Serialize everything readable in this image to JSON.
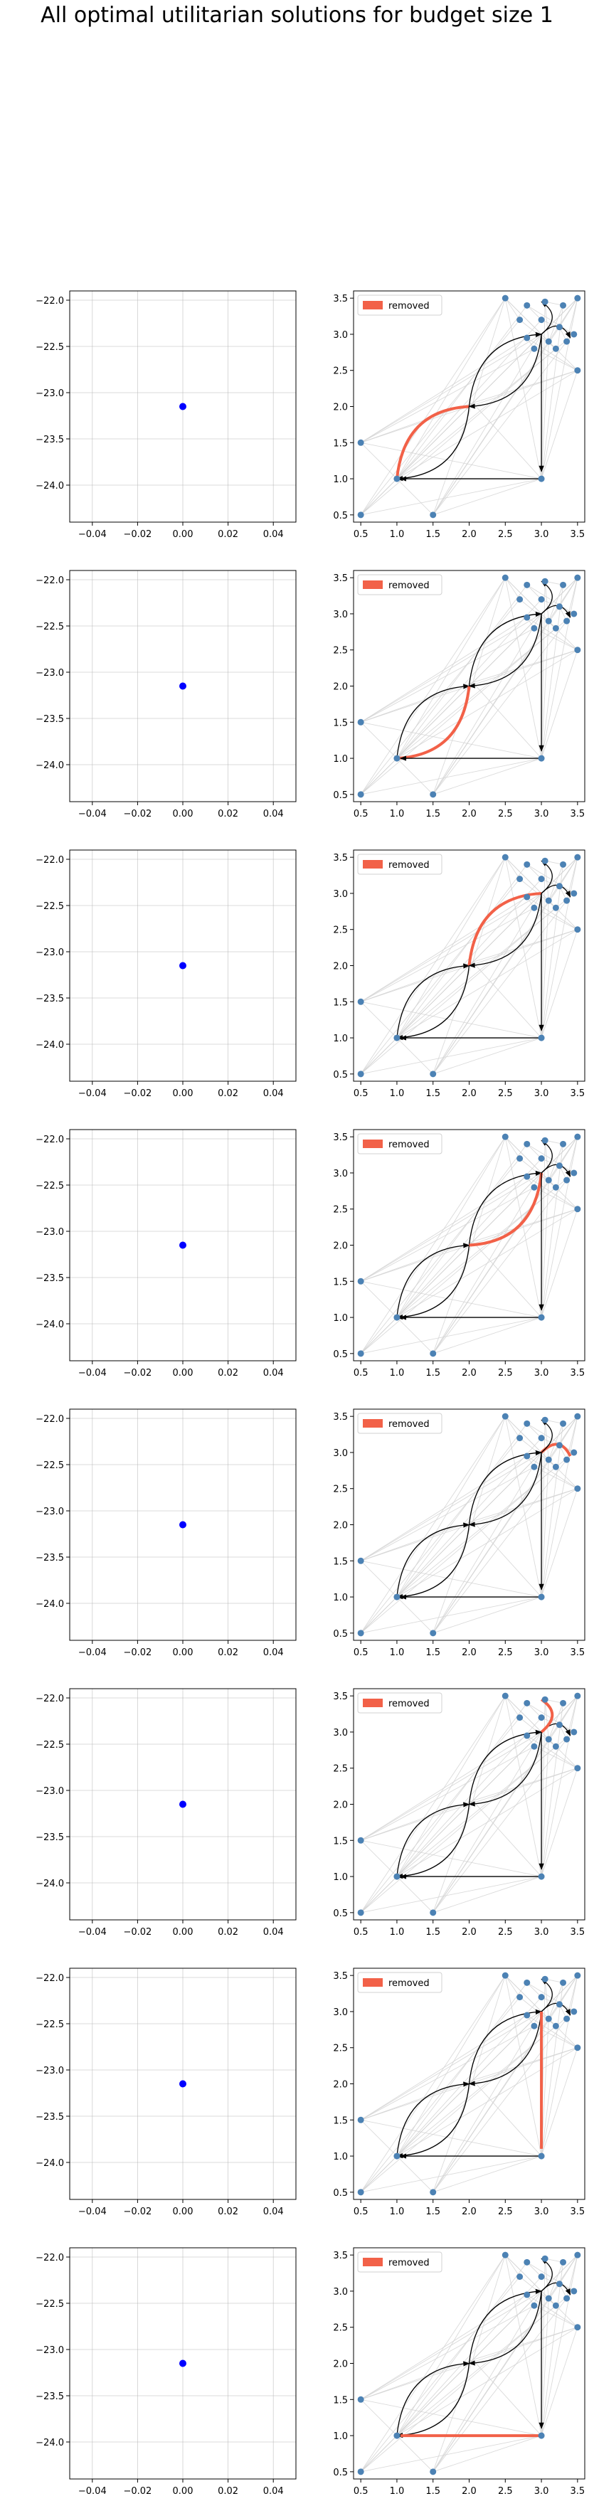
{
  "figure": {
    "title": "All optimal utilitarian solutions for budget size 1"
  },
  "style": {
    "point_color": "#0000ff",
    "node_color": "#4c82b4",
    "removed_color": "#f26148",
    "bg_edge_color": "#d4d4d4",
    "main_edge_color": "#000000",
    "grid_color": "#b0b0b0"
  },
  "chart_data": [
    {
      "type": "scatter",
      "title": "",
      "xlabel": "",
      "ylabel": "",
      "xlim": [
        -0.05,
        0.05
      ],
      "ylim": [
        -24.4,
        -21.9
      ],
      "xticks": [
        -0.04,
        -0.02,
        0.0,
        0.02,
        0.04
      ],
      "yticks": [
        -22.0,
        -22.5,
        -23.0,
        -23.5,
        -24.0
      ],
      "xtick_labels": [
        "−0.04",
        "−0.02",
        "0.00",
        "0.02",
        "0.04"
      ],
      "ytick_labels": [
        "−22.0",
        "−22.5",
        "−23.0",
        "−23.5",
        "−24.0"
      ],
      "grid": true,
      "points": [
        {
          "x": 0.0,
          "y": -23.15
        }
      ]
    },
    {
      "type": "network",
      "legend": [
        "removed"
      ],
      "legend_position": "top-left",
      "xlim": [
        0.4,
        3.6
      ],
      "ylim": [
        0.4,
        3.6
      ],
      "xticks": [
        0.5,
        1.0,
        1.5,
        2.0,
        2.5,
        3.0,
        3.5
      ],
      "yticks": [
        0.5,
        1.0,
        1.5,
        2.0,
        2.5,
        3.0,
        3.5
      ],
      "xtick_labels": [
        "0.5",
        "1.0",
        "1.5",
        "2.0",
        "2.5",
        "3.0",
        "3.5"
      ],
      "ytick_labels": [
        "0.5",
        "1.0",
        "1.5",
        "2.0",
        "2.5",
        "3.0",
        "3.5"
      ],
      "removed_edge": "1-2"
    },
    {
      "type": "scatter",
      "title": "",
      "xlabel": "",
      "ylabel": "",
      "xlim": [
        -0.05,
        0.05
      ],
      "ylim": [
        -24.4,
        -21.9
      ],
      "xticks": [
        -0.04,
        -0.02,
        0.0,
        0.02,
        0.04
      ],
      "yticks": [
        -22.0,
        -22.5,
        -23.0,
        -23.5,
        -24.0
      ],
      "xtick_labels": [
        "−0.04",
        "−0.02",
        "0.00",
        "0.02",
        "0.04"
      ],
      "ytick_labels": [
        "−22.0",
        "−22.5",
        "−23.0",
        "−23.5",
        "−24.0"
      ],
      "grid": true,
      "points": [
        {
          "x": 0.0,
          "y": -23.15
        }
      ]
    },
    {
      "type": "network",
      "legend": [
        "removed"
      ],
      "legend_position": "top-left",
      "xlim": [
        0.4,
        3.6
      ],
      "ylim": [
        0.4,
        3.6
      ],
      "xticks": [
        0.5,
        1.0,
        1.5,
        2.0,
        2.5,
        3.0,
        3.5
      ],
      "yticks": [
        0.5,
        1.0,
        1.5,
        2.0,
        2.5,
        3.0,
        3.5
      ],
      "xtick_labels": [
        "0.5",
        "1.0",
        "1.5",
        "2.0",
        "2.5",
        "3.0",
        "3.5"
      ],
      "ytick_labels": [
        "0.5",
        "1.0",
        "1.5",
        "2.0",
        "2.5",
        "3.0",
        "3.5"
      ],
      "removed_edge": "2-1"
    },
    {
      "type": "scatter",
      "title": "",
      "xlabel": "",
      "ylabel": "",
      "xlim": [
        -0.05,
        0.05
      ],
      "ylim": [
        -24.4,
        -21.9
      ],
      "xticks": [
        -0.04,
        -0.02,
        0.0,
        0.02,
        0.04
      ],
      "yticks": [
        -22.0,
        -22.5,
        -23.0,
        -23.5,
        -24.0
      ],
      "xtick_labels": [
        "−0.04",
        "−0.02",
        "0.00",
        "0.02",
        "0.04"
      ],
      "ytick_labels": [
        "−22.0",
        "−22.5",
        "−23.0",
        "−23.5",
        "−24.0"
      ],
      "grid": true,
      "points": [
        {
          "x": 0.0,
          "y": -23.15
        }
      ]
    },
    {
      "type": "network",
      "legend": [
        "removed"
      ],
      "legend_position": "top-left",
      "xlim": [
        0.4,
        3.6
      ],
      "ylim": [
        0.4,
        3.6
      ],
      "xticks": [
        0.5,
        1.0,
        1.5,
        2.0,
        2.5,
        3.0,
        3.5
      ],
      "yticks": [
        0.5,
        1.0,
        1.5,
        2.0,
        2.5,
        3.0,
        3.5
      ],
      "xtick_labels": [
        "0.5",
        "1.0",
        "1.5",
        "2.0",
        "2.5",
        "3.0",
        "3.5"
      ],
      "ytick_labels": [
        "0.5",
        "1.0",
        "1.5",
        "2.0",
        "2.5",
        "3.0",
        "3.5"
      ],
      "removed_edge": "2-3"
    },
    {
      "type": "scatter",
      "title": "",
      "xlabel": "",
      "ylabel": "",
      "xlim": [
        -0.05,
        0.05
      ],
      "ylim": [
        -24.4,
        -21.9
      ],
      "xticks": [
        -0.04,
        -0.02,
        0.0,
        0.02,
        0.04
      ],
      "yticks": [
        -22.0,
        -22.5,
        -23.0,
        -23.5,
        -24.0
      ],
      "xtick_labels": [
        "−0.04",
        "−0.02",
        "0.00",
        "0.02",
        "0.04"
      ],
      "ytick_labels": [
        "−22.0",
        "−22.5",
        "−23.0",
        "−23.5",
        "−24.0"
      ],
      "grid": true,
      "points": [
        {
          "x": 0.0,
          "y": -23.15
        }
      ]
    },
    {
      "type": "network",
      "legend": [
        "removed"
      ],
      "legend_position": "top-left",
      "xlim": [
        0.4,
        3.6
      ],
      "ylim": [
        0.4,
        3.6
      ],
      "xticks": [
        0.5,
        1.0,
        1.5,
        2.0,
        2.5,
        3.0,
        3.5
      ],
      "yticks": [
        0.5,
        1.0,
        1.5,
        2.0,
        2.5,
        3.0,
        3.5
      ],
      "xtick_labels": [
        "0.5",
        "1.0",
        "1.5",
        "2.0",
        "2.5",
        "3.0",
        "3.5"
      ],
      "ytick_labels": [
        "0.5",
        "1.0",
        "1.5",
        "2.0",
        "2.5",
        "3.0",
        "3.5"
      ],
      "removed_edge": "3-2"
    },
    {
      "type": "scatter",
      "title": "",
      "xlabel": "",
      "ylabel": "",
      "xlim": [
        -0.05,
        0.05
      ],
      "ylim": [
        -24.4,
        -21.9
      ],
      "xticks": [
        -0.04,
        -0.02,
        0.0,
        0.02,
        0.04
      ],
      "yticks": [
        -22.0,
        -22.5,
        -23.0,
        -23.5,
        -24.0
      ],
      "xtick_labels": [
        "−0.04",
        "−0.02",
        "0.00",
        "0.02",
        "0.04"
      ],
      "ytick_labels": [
        "−22.0",
        "−22.5",
        "−23.0",
        "−23.5",
        "−24.0"
      ],
      "grid": true,
      "points": [
        {
          "x": 0.0,
          "y": -23.15
        }
      ]
    },
    {
      "type": "network",
      "legend": [
        "removed"
      ],
      "legend_position": "top-left",
      "xlim": [
        0.4,
        3.6
      ],
      "ylim": [
        0.4,
        3.6
      ],
      "xticks": [
        0.5,
        1.0,
        1.5,
        2.0,
        2.5,
        3.0,
        3.5
      ],
      "yticks": [
        0.5,
        1.0,
        1.5,
        2.0,
        2.5,
        3.0,
        3.5
      ],
      "xtick_labels": [
        "0.5",
        "1.0",
        "1.5",
        "2.0",
        "2.5",
        "3.0",
        "3.5"
      ],
      "ytick_labels": [
        "0.5",
        "1.0",
        "1.5",
        "2.0",
        "2.5",
        "3.0",
        "3.5"
      ],
      "removed_edge": "3-R"
    },
    {
      "type": "scatter",
      "title": "",
      "xlabel": "",
      "ylabel": "",
      "xlim": [
        -0.05,
        0.05
      ],
      "ylim": [
        -24.4,
        -21.9
      ],
      "xticks": [
        -0.04,
        -0.02,
        0.0,
        0.02,
        0.04
      ],
      "yticks": [
        -22.0,
        -22.5,
        -23.0,
        -23.5,
        -24.0
      ],
      "xtick_labels": [
        "−0.04",
        "−0.02",
        "0.00",
        "0.02",
        "0.04"
      ],
      "ytick_labels": [
        "−22.0",
        "−22.5",
        "−23.0",
        "−23.5",
        "−24.0"
      ],
      "grid": true,
      "points": [
        {
          "x": 0.0,
          "y": -23.15
        }
      ]
    },
    {
      "type": "network",
      "legend": [
        "removed"
      ],
      "legend_position": "top-left",
      "xlim": [
        0.4,
        3.6
      ],
      "ylim": [
        0.4,
        3.6
      ],
      "xticks": [
        0.5,
        1.0,
        1.5,
        2.0,
        2.5,
        3.0,
        3.5
      ],
      "yticks": [
        0.5,
        1.0,
        1.5,
        2.0,
        2.5,
        3.0,
        3.5
      ],
      "xtick_labels": [
        "0.5",
        "1.0",
        "1.5",
        "2.0",
        "2.5",
        "3.0",
        "3.5"
      ],
      "ytick_labels": [
        "0.5",
        "1.0",
        "1.5",
        "2.0",
        "2.5",
        "3.0",
        "3.5"
      ],
      "removed_edge": "3-T"
    },
    {
      "type": "scatter",
      "title": "",
      "xlabel": "",
      "ylabel": "",
      "xlim": [
        -0.05,
        0.05
      ],
      "ylim": [
        -24.4,
        -21.9
      ],
      "xticks": [
        -0.04,
        -0.02,
        0.0,
        0.02,
        0.04
      ],
      "yticks": [
        -22.0,
        -22.5,
        -23.0,
        -23.5,
        -24.0
      ],
      "xtick_labels": [
        "−0.04",
        "−0.02",
        "0.00",
        "0.02",
        "0.04"
      ],
      "ytick_labels": [
        "−22.0",
        "−22.5",
        "−23.0",
        "−23.5",
        "−24.0"
      ],
      "grid": true,
      "points": [
        {
          "x": 0.0,
          "y": -23.15
        }
      ]
    },
    {
      "type": "network",
      "legend": [
        "removed"
      ],
      "legend_position": "top-left",
      "xlim": [
        0.4,
        3.6
      ],
      "ylim": [
        0.4,
        3.6
      ],
      "xticks": [
        0.5,
        1.0,
        1.5,
        2.0,
        2.5,
        3.0,
        3.5
      ],
      "yticks": [
        0.5,
        1.0,
        1.5,
        2.0,
        2.5,
        3.0,
        3.5
      ],
      "xtick_labels": [
        "0.5",
        "1.0",
        "1.5",
        "2.0",
        "2.5",
        "3.0",
        "3.5"
      ],
      "ytick_labels": [
        "0.5",
        "1.0",
        "1.5",
        "2.0",
        "2.5",
        "3.0",
        "3.5"
      ],
      "removed_edge": "3-B"
    },
    {
      "type": "scatter",
      "title": "",
      "xlabel": "",
      "ylabel": "",
      "xlim": [
        -0.05,
        0.05
      ],
      "ylim": [
        -24.4,
        -21.9
      ],
      "xticks": [
        -0.04,
        -0.02,
        0.0,
        0.02,
        0.04
      ],
      "yticks": [
        -22.0,
        -22.5,
        -23.0,
        -23.5,
        -24.0
      ],
      "xtick_labels": [
        "−0.04",
        "−0.02",
        "0.00",
        "0.02",
        "0.04"
      ],
      "ytick_labels": [
        "−22.0",
        "−22.5",
        "−23.0",
        "−23.5",
        "−24.0"
      ],
      "grid": true,
      "points": [
        {
          "x": 0.0,
          "y": -23.15
        }
      ]
    },
    {
      "type": "network",
      "legend": [
        "removed"
      ],
      "legend_position": "top-left",
      "xlim": [
        0.4,
        3.6
      ],
      "ylim": [
        0.4,
        3.6
      ],
      "xticks": [
        0.5,
        1.0,
        1.5,
        2.0,
        2.5,
        3.0,
        3.5
      ],
      "yticks": [
        0.5,
        1.0,
        1.5,
        2.0,
        2.5,
        3.0,
        3.5
      ],
      "xtick_labels": [
        "0.5",
        "1.0",
        "1.5",
        "2.0",
        "2.5",
        "3.0",
        "3.5"
      ],
      "ytick_labels": [
        "0.5",
        "1.0",
        "1.5",
        "2.0",
        "2.5",
        "3.0",
        "3.5"
      ],
      "removed_edge": "B-1"
    }
  ]
}
